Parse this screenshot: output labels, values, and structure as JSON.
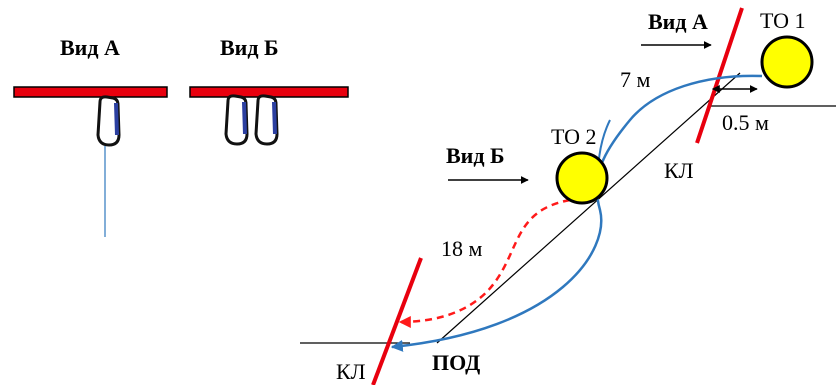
{
  "panel_a": {
    "title": "Вид А"
  },
  "panel_b": {
    "title": "Вид Б"
  },
  "diagram": {
    "view_a": "Вид А",
    "view_b": "Вид Б",
    "to1": "ТО 1",
    "to2": "ТО 2",
    "dist_7m": "7 м",
    "dist_05m": "0.5 м",
    "dist_18m": "18 м",
    "kl_upper": "КЛ",
    "kl_lower": "КЛ",
    "pod": "ПОД"
  },
  "colors": {
    "bar_red": "#e8000e",
    "rope_blue": "#2f78be",
    "anchor_yellow": "#ffff00",
    "arrow_red": "#ff1a1a",
    "carabiner_gate": "#2b3fa0",
    "line_black": "#000000"
  },
  "icons": [
    "carabiner-icon",
    "arrow-right-icon",
    "double-arrow-icon"
  ]
}
